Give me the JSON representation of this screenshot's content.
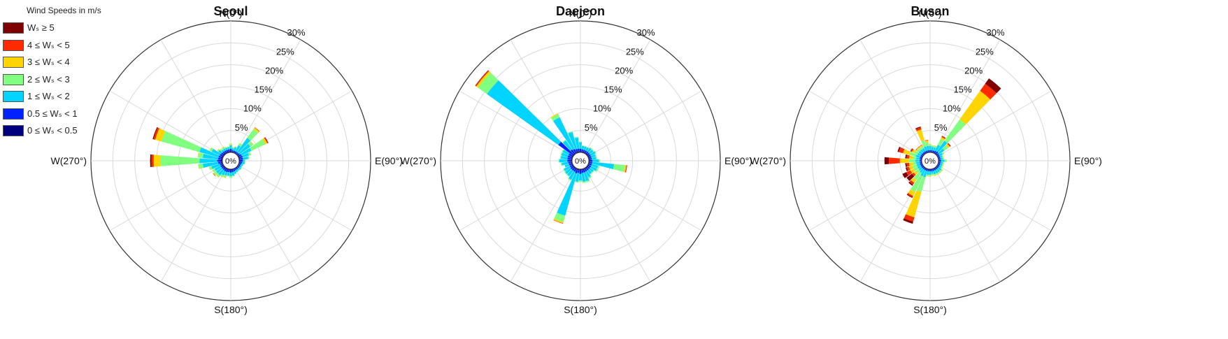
{
  "legend": {
    "title": "Wind Speeds in m/s",
    "bins": [
      {
        "label": "Wₛ ≥ 5",
        "color": "#7f0000"
      },
      {
        "label": "4 ≤ Wₛ < 5",
        "color": "#ff2a00"
      },
      {
        "label": "3 ≤ Wₛ < 4",
        "color": "#ffd400"
      },
      {
        "label": "2 ≤ Wₛ < 3",
        "color": "#80ff80"
      },
      {
        "label": "1 ≤ Wₛ < 2",
        "color": "#00d4ff"
      },
      {
        "label": "0.5 ≤ Wₛ < 1",
        "color": "#0022ff"
      },
      {
        "label": "0 ≤ Wₛ < 0.5",
        "color": "#00007f"
      }
    ]
  },
  "chart_data": [
    {
      "type": "wind-rose",
      "title": "Seoul",
      "direction_labels": [
        "N(0°)",
        "E(90°)",
        "S(180°)",
        "W(270°)"
      ],
      "radial_ticks": [
        "0%",
        "5%",
        "10%",
        "15%",
        "20%",
        "25%",
        "30%"
      ],
      "rlim": [
        0,
        30
      ],
      "stack_order": [
        "0 ≤ Wₛ < 0.5",
        "0.5 ≤ Wₛ < 1",
        "1 ≤ Wₛ < 2",
        "2 ≤ Wₛ < 3",
        "3 ≤ Wₛ < 4",
        "4 ≤ Wₛ < 5",
        "Wₛ ≥ 5"
      ],
      "directions_deg": [
        0,
        10,
        20,
        30,
        40,
        50,
        60,
        70,
        80,
        90,
        100,
        110,
        120,
        130,
        140,
        150,
        160,
        170,
        180,
        190,
        200,
        210,
        220,
        230,
        240,
        250,
        260,
        270,
        280,
        290,
        300,
        310,
        320,
        330,
        340,
        350
      ],
      "bins_percent": [
        [
          0.3,
          0.2,
          0.2,
          0.2,
          0.2,
          0.2,
          0.3,
          0.3,
          0.3,
          0.3,
          0.3,
          0.2,
          0.2,
          0.2,
          0.2,
          0.2,
          0.2,
          0.3,
          0.3,
          0.3,
          0.3,
          0.3,
          0.3,
          0.3,
          0.3,
          0.3,
          0.4,
          0.4,
          0.4,
          0.4,
          0.3,
          0.3,
          0.3,
          0.3,
          0.3,
          0.3
        ],
        [
          0.5,
          0.3,
          0.3,
          0.3,
          0.3,
          0.4,
          0.5,
          0.6,
          0.6,
          0.5,
          0.4,
          0.3,
          0.3,
          0.3,
          0.3,
          0.3,
          0.4,
          0.4,
          0.5,
          0.4,
          0.5,
          0.5,
          0.4,
          0.4,
          0.4,
          0.4,
          0.6,
          0.8,
          0.6,
          0.6,
          0.6,
          0.5,
          0.4,
          0.4,
          0.4,
          0.4
        ],
        [
          0.8,
          0.5,
          0.8,
          1.5,
          4.0,
          3.0,
          2.5,
          1.5,
          1.2,
          0.5,
          0.6,
          0.5,
          0.4,
          0.5,
          0.4,
          0.5,
          0.6,
          0.8,
          0.8,
          0.8,
          0.8,
          1.0,
          1.5,
          1.5,
          1.5,
          2.0,
          3.5,
          4.0,
          3.5,
          4.5,
          2.0,
          0.8,
          0.5,
          0.5,
          0.5,
          0.5
        ],
        [
          0.3,
          0.2,
          0.2,
          0.5,
          2.5,
          0.8,
          3.5,
          0.5,
          0.3,
          0.1,
          0.1,
          0.1,
          0.1,
          0.1,
          0.1,
          0.1,
          0.1,
          0.2,
          0.4,
          0.2,
          0.5,
          0.4,
          0.5,
          0.6,
          0.5,
          0.5,
          1.0,
          9.0,
          1.0,
          9.0,
          0.5,
          0.3,
          0.3,
          0.4,
          0.2,
          0.2
        ],
        [
          0.1,
          0,
          0,
          0.1,
          0.4,
          0.1,
          0.5,
          0,
          0,
          0,
          0,
          0,
          0,
          0,
          0,
          0,
          0,
          0,
          0,
          0,
          0.1,
          0.1,
          0.1,
          0.2,
          0.1,
          0.1,
          0.1,
          1.5,
          0.2,
          1.5,
          0.1,
          0.1,
          0.1,
          0.1,
          0,
          0
        ],
        [
          0,
          0,
          0,
          0,
          0.1,
          0,
          0.2,
          0,
          0,
          0,
          0,
          0,
          0,
          0,
          0,
          0,
          0,
          0,
          0,
          0,
          0,
          0,
          0,
          0.1,
          0,
          0,
          0,
          0.5,
          0,
          0.4,
          0,
          0,
          0,
          0,
          0,
          0
        ],
        [
          0,
          0,
          0,
          0,
          0,
          0,
          0.1,
          0,
          0,
          0,
          0,
          0,
          0,
          0,
          0,
          0,
          0,
          0,
          0,
          0,
          0,
          0,
          0,
          0,
          0,
          0,
          0,
          0.3,
          0,
          0.2,
          0,
          0,
          0,
          0,
          0,
          0
        ]
      ]
    },
    {
      "type": "wind-rose",
      "title": "Daejeon",
      "direction_labels": [
        "N(0°)",
        "E(90°)",
        "S(180°)",
        "W(270°)"
      ],
      "radial_ticks": [
        "0%",
        "5%",
        "10%",
        "15%",
        "20%",
        "25%",
        "30%"
      ],
      "rlim": [
        0,
        30
      ],
      "stack_order": [
        "0 ≤ Wₛ < 0.5",
        "0.5 ≤ Wₛ < 1",
        "1 ≤ Wₛ < 2",
        "2 ≤ Wₛ < 3",
        "3 ≤ Wₛ < 4",
        "4 ≤ Wₛ < 5",
        "Wₛ ≥ 5"
      ],
      "directions_deg": [
        0,
        10,
        20,
        30,
        40,
        50,
        60,
        70,
        80,
        90,
        100,
        110,
        120,
        130,
        140,
        150,
        160,
        170,
        180,
        190,
        200,
        210,
        220,
        230,
        240,
        250,
        260,
        270,
        280,
        290,
        300,
        310,
        320,
        330,
        340,
        350
      ],
      "bins_percent": [
        [
          0.3,
          0.3,
          0.3,
          0.3,
          0.3,
          0.3,
          0.3,
          0.3,
          0.3,
          0.3,
          0.3,
          0.3,
          0.3,
          0.3,
          0.3,
          0.3,
          0.3,
          0.3,
          0.3,
          0.3,
          0.3,
          0.3,
          0.3,
          0.3,
          0.3,
          0.3,
          0.3,
          0.3,
          0.3,
          0.3,
          0.3,
          0.3,
          0.3,
          0.3,
          0.3,
          0.3
        ],
        [
          0.5,
          0.4,
          0.4,
          0.4,
          0.4,
          0.4,
          0.4,
          0.4,
          0.4,
          0.5,
          0.5,
          0.5,
          0.5,
          0.5,
          0.5,
          0.5,
          0.6,
          0.6,
          0.8,
          0.6,
          0.8,
          0.6,
          0.6,
          0.6,
          0.5,
          0.5,
          0.6,
          0.8,
          0.8,
          0.8,
          0.8,
          4.0,
          1.0,
          0.8,
          0.6,
          0.6
        ],
        [
          1.5,
          0.8,
          0.8,
          0.8,
          1.0,
          1.0,
          1.2,
          1.0,
          1.0,
          1.5,
          5.0,
          1.5,
          1.5,
          1.0,
          1.0,
          1.5,
          2.0,
          2.0,
          1.5,
          2.0,
          10.0,
          2.0,
          1.5,
          1.5,
          1.5,
          1.0,
          1.5,
          1.8,
          1.5,
          1.5,
          1.5,
          20.0,
          2.5,
          8.0,
          4.0,
          2.5
        ],
        [
          0.2,
          0.1,
          0.1,
          0.1,
          0.2,
          0.2,
          0.2,
          0.2,
          0.2,
          0.3,
          2.5,
          0.3,
          0.3,
          0.2,
          0.2,
          0.3,
          0.3,
          0.3,
          0.3,
          0.2,
          1.5,
          0.2,
          0.2,
          0.2,
          0.2,
          0.1,
          0.2,
          0.2,
          0.2,
          0.2,
          0.2,
          2.5,
          0.2,
          0.8,
          0.2,
          0.2
        ],
        [
          0,
          0,
          0,
          0,
          0,
          0,
          0,
          0,
          0,
          0,
          0.3,
          0,
          0,
          0,
          0,
          0,
          0,
          0,
          0,
          0,
          0.3,
          0,
          0,
          0,
          0,
          0,
          0,
          0,
          0,
          0,
          0,
          0.5,
          0,
          0.2,
          0,
          0
        ],
        [
          0,
          0,
          0,
          0,
          0,
          0,
          0,
          0,
          0,
          0,
          0.2,
          0,
          0,
          0,
          0,
          0,
          0,
          0,
          0,
          0,
          0.1,
          0,
          0,
          0,
          0,
          0,
          0,
          0,
          0,
          0,
          0,
          0.2,
          0,
          0,
          0,
          0
        ],
        [
          0,
          0,
          0,
          0,
          0,
          0,
          0,
          0,
          0,
          0,
          0,
          0,
          0,
          0,
          0,
          0,
          0,
          0,
          0,
          0,
          0,
          0,
          0,
          0,
          0,
          0,
          0,
          0,
          0,
          0,
          0,
          0.1,
          0,
          0,
          0,
          0
        ]
      ]
    },
    {
      "type": "wind-rose",
      "title": "Busan",
      "direction_labels": [
        "N(0°)",
        "E(90°)",
        "S(180°)",
        "W(270°)"
      ],
      "radial_ticks": [
        "0%",
        "5%",
        "10%",
        "15%",
        "20%",
        "25%",
        "30%"
      ],
      "rlim": [
        0,
        30
      ],
      "stack_order": [
        "0 ≤ Wₛ < 0.5",
        "0.5 ≤ Wₛ < 1",
        "1 ≤ Wₛ < 2",
        "2 ≤ Wₛ < 3",
        "3 ≤ Wₛ < 4",
        "4 ≤ Wₛ < 5",
        "Wₛ ≥ 5"
      ],
      "directions_deg": [
        0,
        10,
        20,
        30,
        40,
        50,
        60,
        70,
        80,
        90,
        100,
        110,
        120,
        130,
        140,
        150,
        160,
        170,
        180,
        190,
        200,
        210,
        220,
        230,
        240,
        250,
        260,
        270,
        280,
        290,
        300,
        310,
        320,
        330,
        340,
        350
      ],
      "bins_percent": [
        [
          0.2,
          0.2,
          0.2,
          0.2,
          0.2,
          0.2,
          0.2,
          0.2,
          0.2,
          0.2,
          0.2,
          0.2,
          0.2,
          0.2,
          0.2,
          0.2,
          0.2,
          0.2,
          0.2,
          0.2,
          0.2,
          0.2,
          0.2,
          0.2,
          0.2,
          0.2,
          0.2,
          0.2,
          0.2,
          0.2,
          0.2,
          0.2,
          0.2,
          0.2,
          0.2,
          0.2
        ],
        [
          0.3,
          0.3,
          0.3,
          0.4,
          0.5,
          0.4,
          0.3,
          0.3,
          0.3,
          0.4,
          0.3,
          0.3,
          0.3,
          0.3,
          0.3,
          0.3,
          0.3,
          0.3,
          0.3,
          0.3,
          0.3,
          0.3,
          0.3,
          0.3,
          0.3,
          0.3,
          0.3,
          0.3,
          0.3,
          0.3,
          0.3,
          0.3,
          0.3,
          0.3,
          0.3,
          0.3
        ],
        [
          1.0,
          0.8,
          0.8,
          1.5,
          3.0,
          1.5,
          0.8,
          0.5,
          0.5,
          0.8,
          0.5,
          0.5,
          0.5,
          0.8,
          0.8,
          0.8,
          0.8,
          0.6,
          0.8,
          0.8,
          1.5,
          1.5,
          1.0,
          0.8,
          0.8,
          0.8,
          0.8,
          1.0,
          0.8,
          1.0,
          0.8,
          0.8,
          0.8,
          0.8,
          1.0,
          1.0
        ],
        [
          0.3,
          0.3,
          0.3,
          1.5,
          6.0,
          1.0,
          0.3,
          0.2,
          0.2,
          0.4,
          0.2,
          0.2,
          0.2,
          0.3,
          0.3,
          0.3,
          0.3,
          0.3,
          0.3,
          0.3,
          3.5,
          4.0,
          2.0,
          0.8,
          1.0,
          1.0,
          0.8,
          1.5,
          0.8,
          1.5,
          0.8,
          0.5,
          0.5,
          0.5,
          1.5,
          0.8
        ],
        [
          0.1,
          0.1,
          0.1,
          0.5,
          8.0,
          0.5,
          0.1,
          0.1,
          0.1,
          0.1,
          0.1,
          0.1,
          0.1,
          0.1,
          0.1,
          0.1,
          0.1,
          0.1,
          0.1,
          0.1,
          6.0,
          1.0,
          0.8,
          0.6,
          0.8,
          0.8,
          0.8,
          2.0,
          0.8,
          1.5,
          0.6,
          0.3,
          0.3,
          0.3,
          2.5,
          0.5
        ],
        [
          0,
          0,
          0,
          0.2,
          2.0,
          0.2,
          0,
          0,
          0,
          0,
          0,
          0,
          0,
          0,
          0,
          0,
          0,
          0,
          0,
          0,
          1.0,
          0.3,
          0.5,
          0.5,
          1.0,
          0.5,
          0.6,
          2.5,
          0.6,
          1.0,
          0.3,
          0.1,
          0.1,
          0.1,
          0.5,
          0.1
        ],
        [
          0,
          0,
          0,
          0.1,
          1.5,
          0.1,
          0,
          0,
          0,
          0,
          0,
          0,
          0,
          0,
          0,
          0,
          0,
          0,
          0,
          0,
          0.5,
          0.2,
          0.3,
          1.5,
          1.0,
          0.3,
          0.3,
          1.0,
          0.3,
          0.3,
          0.1,
          0,
          0,
          0,
          0.2,
          0
        ]
      ]
    }
  ]
}
